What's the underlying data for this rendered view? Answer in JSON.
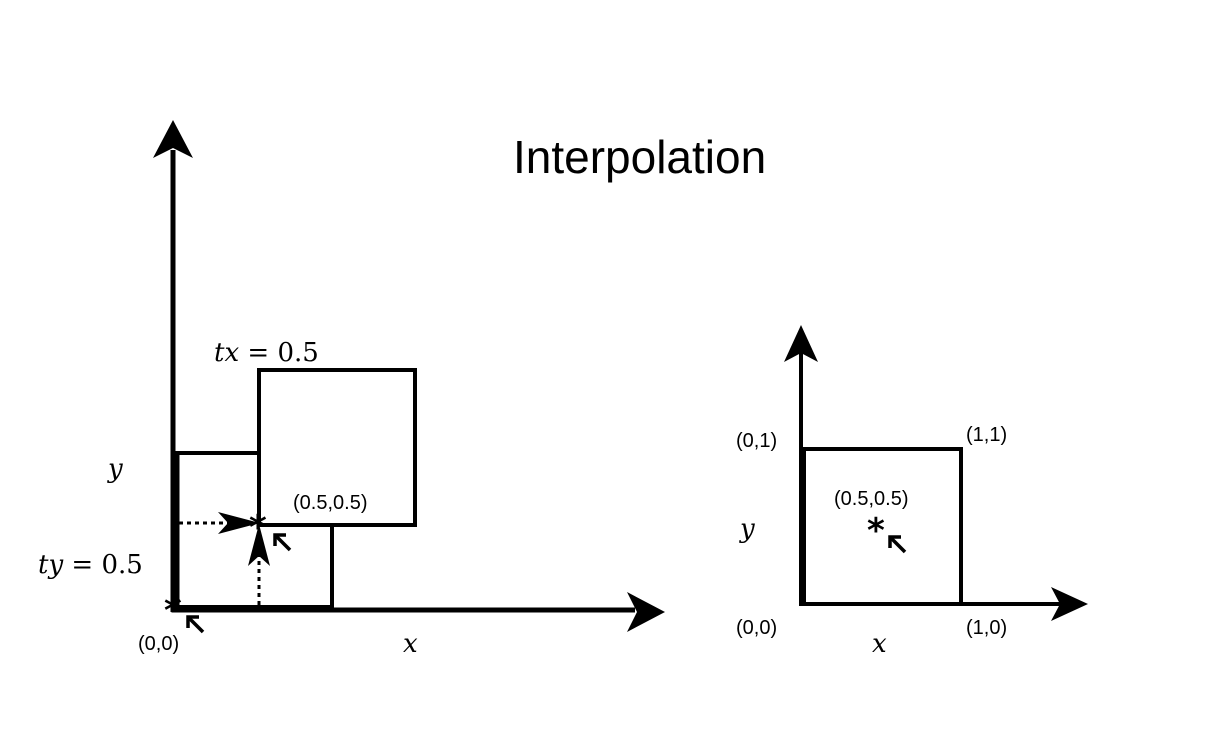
{
  "title": "Interpolation",
  "left": {
    "tx_label": {
      "var": "tx",
      "eq": " = ",
      "val": "0.5"
    },
    "ty_label": {
      "var": "ty",
      "eq": " = ",
      "val": "0.5"
    },
    "y_label": "y",
    "x_label": "x",
    "origin_label": "(0,0)",
    "mid_label": "(0.5,0.5)"
  },
  "right": {
    "y_label": "y",
    "x_label": "x",
    "corner_00": "(0,0)",
    "corner_01": "(0,1)",
    "corner_11": "(1,1)",
    "corner_10": "(1,0)",
    "mid_label": "(0.5,0.5)"
  }
}
